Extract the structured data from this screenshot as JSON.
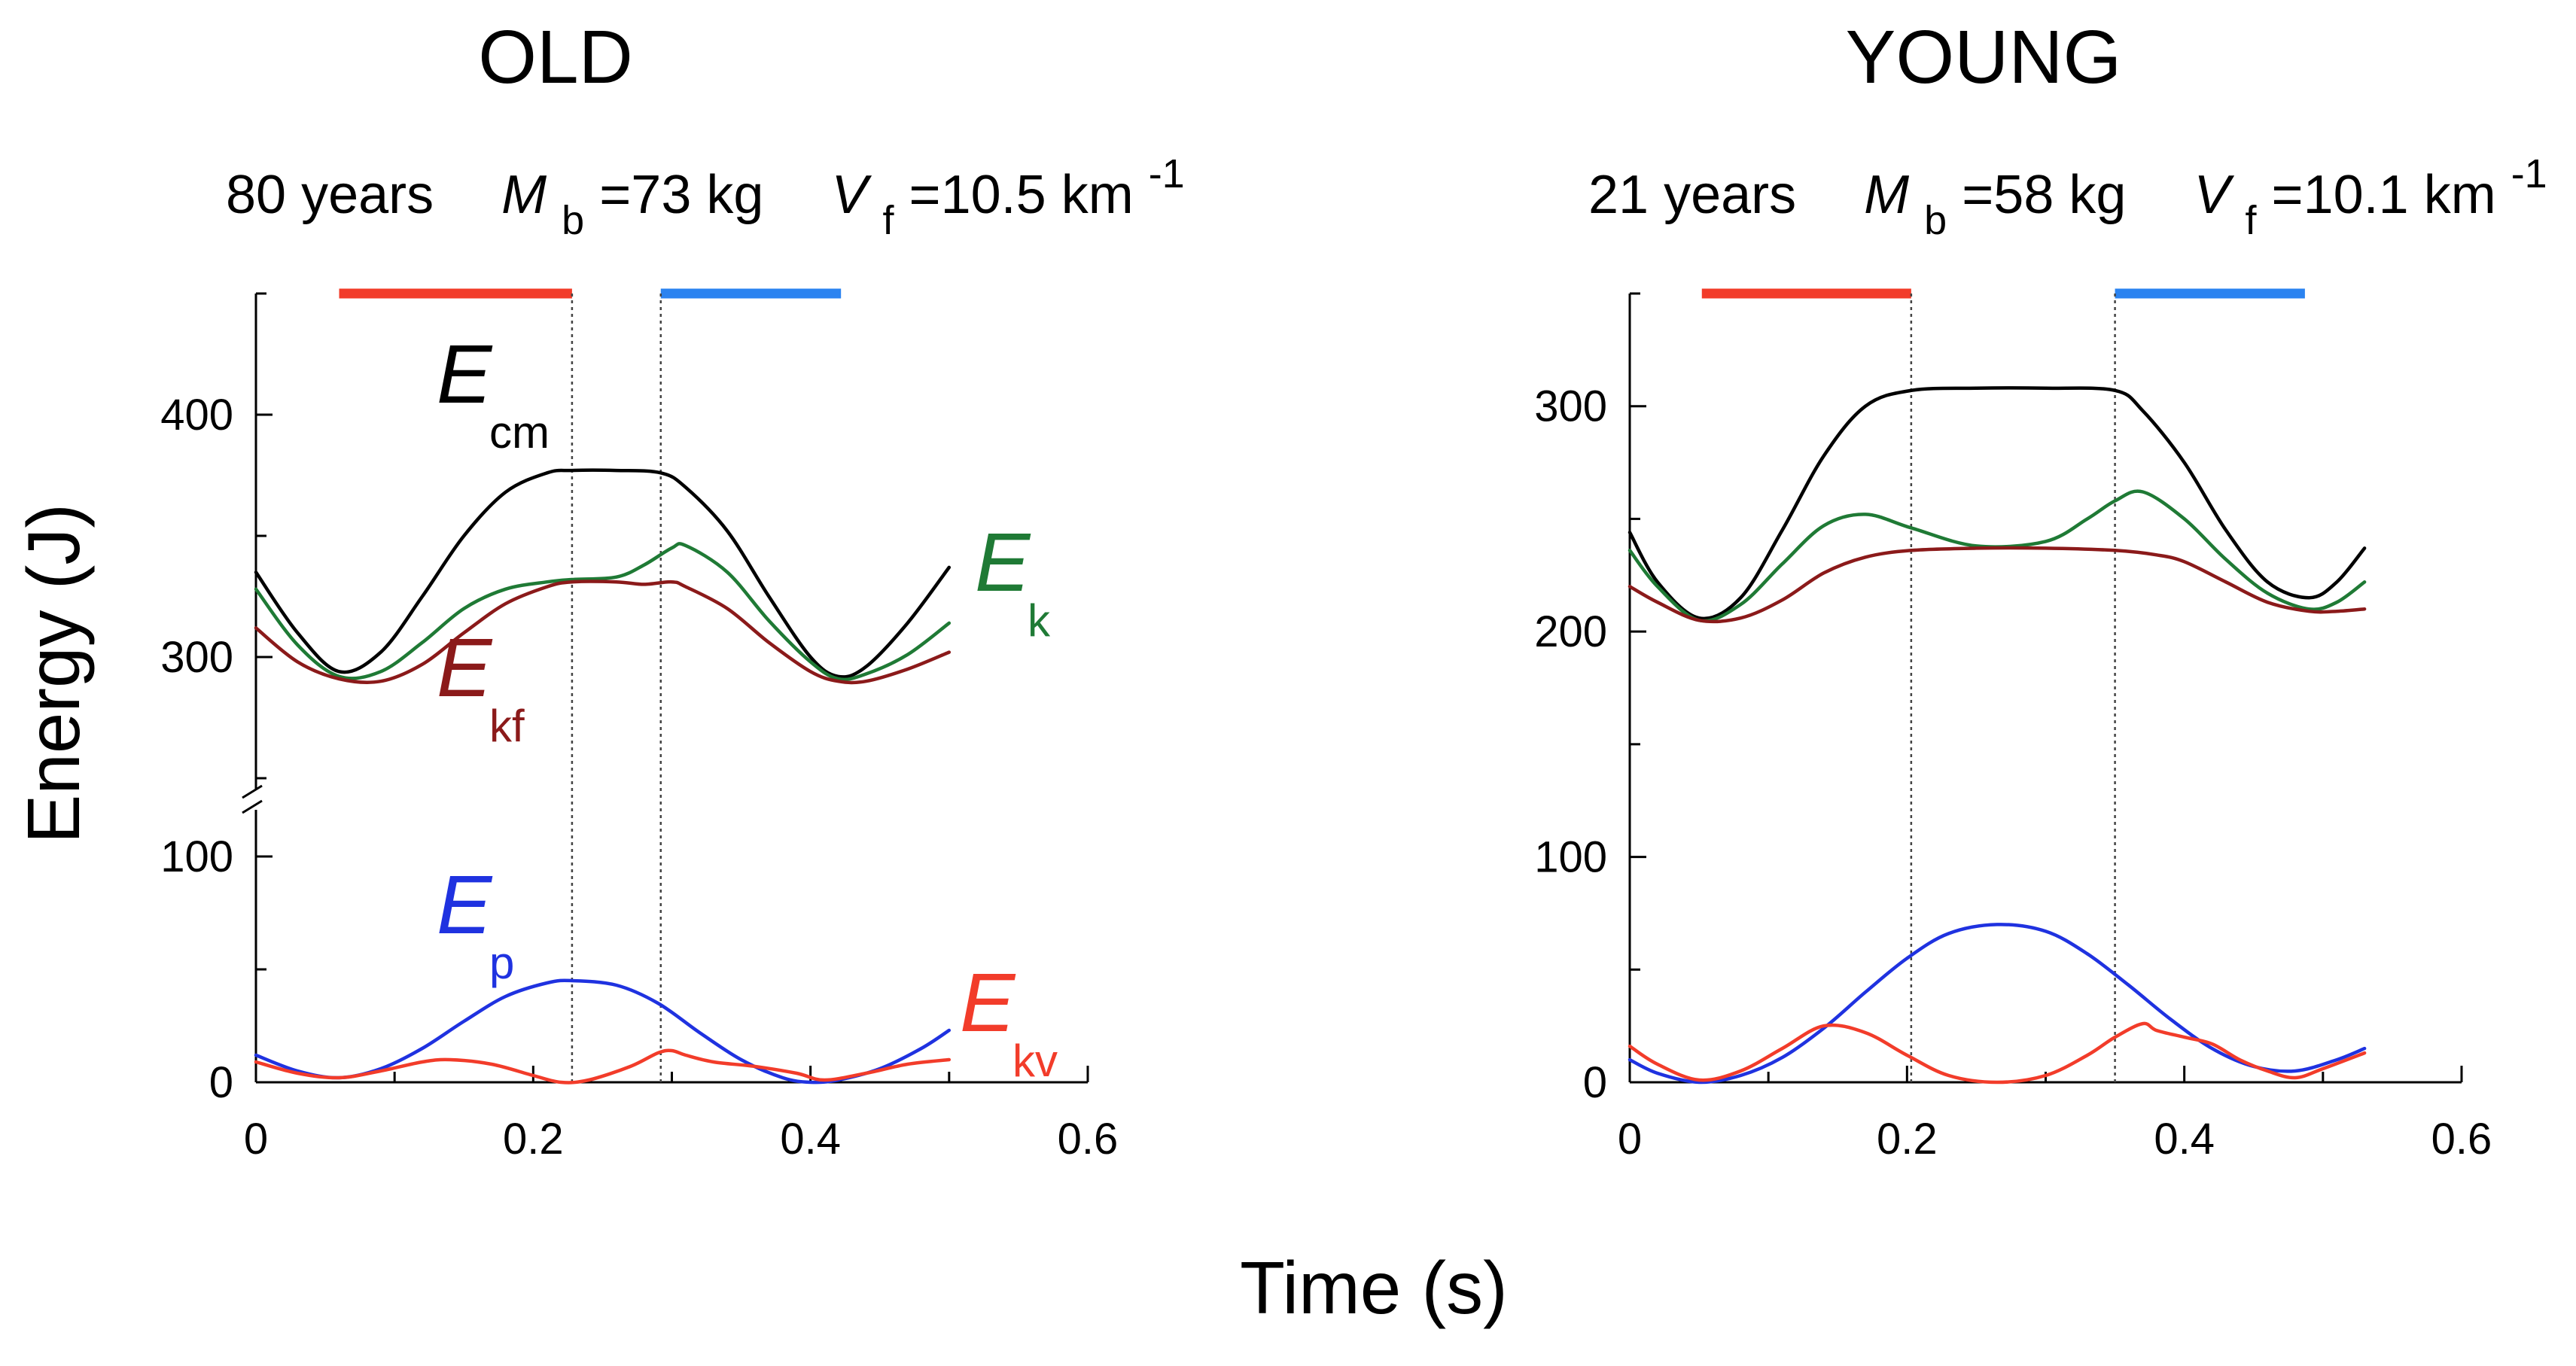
{
  "ylabel": "Energy (J)",
  "xlabel": "Time (s)",
  "colors": {
    "Ecm": "#000000",
    "Ek": "#1f7a35",
    "Ekf": "#8b1a1a",
    "Ep": "#1f32e0",
    "Ekv": "#f23c2a",
    "stance_bar": "#f23c2a",
    "swing_bar": "#2b83f0",
    "guide": "#444444"
  },
  "panels": [
    {
      "title": "OLD",
      "age": "80 years",
      "mass_symbol": "M",
      "mass_sub": "b",
      "mass_value": "=73 kg",
      "speed_symbol": "V",
      "speed_sub": "f",
      "speed_value": "=10.5 km",
      "speed_exp": "-1"
    },
    {
      "title": "YOUNG",
      "age": "21 years",
      "mass_symbol": "M",
      "mass_sub": "b",
      "mass_value": "=58 kg",
      "speed_symbol": "V",
      "speed_sub": "f",
      "speed_value": "=10.1 km",
      "speed_exp": "-1"
    }
  ],
  "labels": {
    "Ecm": {
      "main": "E",
      "sub": "cm"
    },
    "Ek": {
      "main": "E",
      "sub": "k"
    },
    "Ekf": {
      "main": "E",
      "sub": "kf"
    },
    "Ep": {
      "main": "E",
      "sub": "p"
    },
    "Ekv": {
      "main": "E",
      "sub": "kv"
    }
  },
  "chart_data": [
    {
      "type": "line",
      "title": "OLD",
      "xlabel": "Time (s)",
      "ylabel": "Energy (J)",
      "xlim": [
        0,
        0.6
      ],
      "x_ticks": [
        0,
        0.2,
        0.4,
        0.6
      ],
      "broken_y_axis": true,
      "y_segments": [
        {
          "range": [
            0,
            100
          ],
          "ticks": [
            0,
            100
          ]
        },
        {
          "range": [
            250,
            450
          ],
          "ticks": [
            300,
            400
          ]
        }
      ],
      "stance_bar": [
        0.06,
        0.228
      ],
      "swing_bar": [
        0.292,
        0.422
      ],
      "guide_lines": [
        0.228,
        0.292
      ],
      "series": [
        {
          "name": "Ecm",
          "x": [
            0,
            0.03,
            0.06,
            0.09,
            0.12,
            0.15,
            0.18,
            0.21,
            0.228,
            0.26,
            0.292,
            0.31,
            0.34,
            0.37,
            0.4,
            0.42,
            0.44,
            0.47,
            0.5
          ],
          "y": [
            335,
            310,
            294,
            302,
            325,
            350,
            368,
            376,
            377,
            377,
            376,
            370,
            352,
            325,
            300,
            292,
            296,
            314,
            337
          ]
        },
        {
          "name": "Ek",
          "x": [
            0,
            0.03,
            0.06,
            0.09,
            0.12,
            0.15,
            0.18,
            0.21,
            0.228,
            0.26,
            0.28,
            0.3,
            0.31,
            0.34,
            0.37,
            0.4,
            0.42,
            0.44,
            0.47,
            0.5
          ],
          "y": [
            328,
            305,
            292,
            294,
            306,
            320,
            328,
            331,
            332,
            333,
            338,
            345,
            346,
            335,
            315,
            298,
            291,
            293,
            301,
            314
          ]
        },
        {
          "name": "Ekf",
          "x": [
            0,
            0.03,
            0.06,
            0.09,
            0.12,
            0.15,
            0.18,
            0.21,
            0.228,
            0.26,
            0.28,
            0.3,
            0.31,
            0.34,
            0.37,
            0.4,
            0.42,
            0.44,
            0.47,
            0.5
          ],
          "y": [
            312,
            298,
            291,
            290,
            297,
            310,
            322,
            329,
            331,
            331,
            330,
            331,
            329,
            320,
            306,
            294,
            290,
            290,
            295,
            302
          ]
        },
        {
          "name": "Ep",
          "x": [
            0,
            0.03,
            0.06,
            0.09,
            0.12,
            0.15,
            0.18,
            0.21,
            0.228,
            0.26,
            0.29,
            0.32,
            0.35,
            0.38,
            0.4,
            0.42,
            0.45,
            0.48,
            0.5
          ],
          "y": [
            12,
            5,
            2,
            6,
            15,
            27,
            38,
            44,
            45,
            43,
            35,
            22,
            10,
            2,
            0,
            1,
            6,
            15,
            23
          ]
        },
        {
          "name": "Ekv",
          "x": [
            0,
            0.03,
            0.06,
            0.09,
            0.12,
            0.14,
            0.17,
            0.2,
            0.22,
            0.24,
            0.27,
            0.29,
            0.3,
            0.31,
            0.33,
            0.36,
            0.39,
            0.41,
            0.44,
            0.47,
            0.5
          ],
          "y": [
            9,
            4,
            2,
            5,
            9,
            10,
            8,
            3,
            0,
            1,
            7,
            13,
            14,
            12,
            9,
            7,
            4,
            1,
            4,
            8,
            10
          ]
        }
      ]
    },
    {
      "type": "line",
      "title": "YOUNG",
      "xlabel": "Time (s)",
      "ylabel": "Energy (J)",
      "xlim": [
        0,
        0.6
      ],
      "x_ticks": [
        0,
        0.2,
        0.4,
        0.6
      ],
      "ylim": [
        0,
        350
      ],
      "y_ticks": [
        0,
        100,
        200,
        300
      ],
      "stance_bar": [
        0.052,
        0.203
      ],
      "swing_bar": [
        0.35,
        0.487
      ],
      "guide_lines": [
        0.203,
        0.35
      ],
      "series": [
        {
          "name": "Ecm",
          "x": [
            0,
            0.02,
            0.05,
            0.08,
            0.11,
            0.14,
            0.17,
            0.203,
            0.25,
            0.3,
            0.35,
            0.37,
            0.4,
            0.43,
            0.46,
            0.49,
            0.51,
            0.53
          ],
          "y": [
            244,
            222,
            206,
            215,
            245,
            278,
            300,
            307,
            308,
            308,
            307,
            298,
            275,
            245,
            222,
            215,
            222,
            237
          ]
        },
        {
          "name": "Ek",
          "x": [
            0,
            0.02,
            0.05,
            0.08,
            0.11,
            0.14,
            0.17,
            0.203,
            0.25,
            0.3,
            0.33,
            0.35,
            0.37,
            0.4,
            0.43,
            0.46,
            0.49,
            0.51,
            0.53
          ],
          "y": [
            236,
            220,
            205,
            212,
            230,
            247,
            252,
            246,
            238,
            240,
            250,
            258,
            262,
            250,
            232,
            217,
            210,
            213,
            222
          ]
        },
        {
          "name": "Ekf",
          "x": [
            0,
            0.02,
            0.05,
            0.08,
            0.11,
            0.14,
            0.17,
            0.203,
            0.25,
            0.3,
            0.35,
            0.38,
            0.4,
            0.43,
            0.46,
            0.49,
            0.51,
            0.53
          ],
          "y": [
            220,
            213,
            205,
            206,
            214,
            226,
            233,
            236,
            237,
            237,
            236,
            234,
            231,
            222,
            213,
            209,
            209,
            210
          ]
        },
        {
          "name": "Ep",
          "x": [
            0,
            0.02,
            0.05,
            0.08,
            0.11,
            0.14,
            0.17,
            0.2,
            0.23,
            0.265,
            0.3,
            0.33,
            0.36,
            0.39,
            0.42,
            0.45,
            0.48,
            0.51,
            0.53
          ],
          "y": [
            10,
            4,
            0,
            3,
            11,
            24,
            40,
            55,
            66,
            70,
            67,
            57,
            43,
            28,
            15,
            7,
            5,
            10,
            15
          ]
        },
        {
          "name": "Ekv",
          "x": [
            0,
            0.02,
            0.05,
            0.08,
            0.11,
            0.14,
            0.17,
            0.2,
            0.23,
            0.265,
            0.3,
            0.33,
            0.35,
            0.37,
            0.38,
            0.4,
            0.42,
            0.44,
            0.46,
            0.48,
            0.5,
            0.53
          ],
          "y": [
            16,
            8,
            1,
            5,
            15,
            25,
            22,
            12,
            3,
            0,
            3,
            12,
            20,
            26,
            23,
            20,
            17,
            10,
            5,
            2,
            6,
            13
          ]
        }
      ]
    }
  ]
}
